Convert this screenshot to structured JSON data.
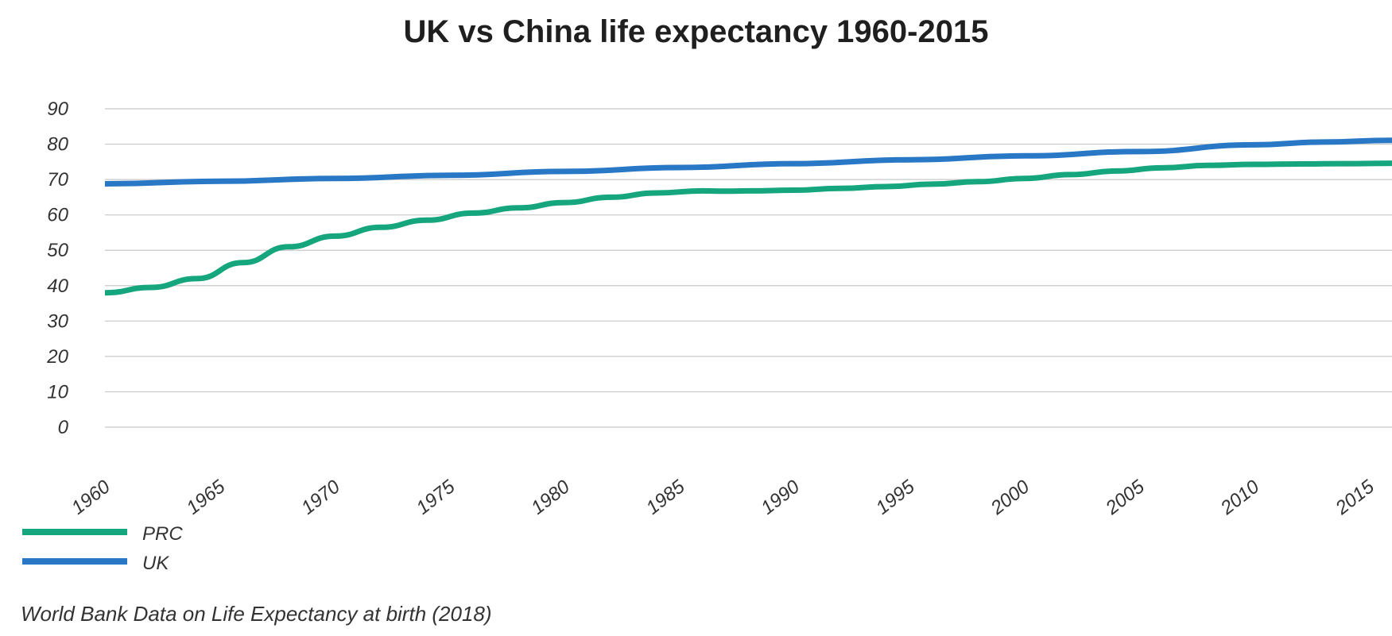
{
  "title": "UK vs China life expectancy 1960-2015",
  "source": "World Bank Data on Life Expectancy at birth (2018)",
  "chart_data": {
    "type": "line",
    "title": "UK vs China life expectancy 1960-2015",
    "xlabel": "",
    "ylabel": "",
    "x_ticks": [
      "1960",
      "1965",
      "1970",
      "1975",
      "1980",
      "1985",
      "1990",
      "1995",
      "2000",
      "2005",
      "2010",
      "2015"
    ],
    "xlim": [
      1960,
      2016
    ],
    "ylim": [
      0,
      90
    ],
    "y_ticks": [
      0,
      10,
      20,
      30,
      40,
      50,
      60,
      70,
      80,
      90
    ],
    "grid": true,
    "legend_position": "bottom-left",
    "series": [
      {
        "name": "PRC",
        "color": "#16a67e",
        "x": [
          1960,
          1962,
          1964,
          1966,
          1968,
          1970,
          1972,
          1974,
          1976,
          1978,
          1980,
          1982,
          1984,
          1986,
          1987,
          1988,
          1990,
          1992,
          1994,
          1996,
          1998,
          2000,
          2002,
          2004,
          2006,
          2008,
          2010,
          2012,
          2014,
          2016
        ],
        "y": [
          38,
          39.5,
          42,
          46.5,
          51,
          54,
          56.5,
          58.5,
          60.5,
          62,
          63.5,
          65,
          66.2,
          66.8,
          66.7,
          66.8,
          67,
          67.5,
          68,
          68.7,
          69.4,
          70.3,
          71.4,
          72.4,
          73.3,
          74,
          74.3,
          74.4,
          74.5,
          74.6
        ]
      },
      {
        "name": "UK",
        "color": "#2878c6",
        "x": [
          1960,
          1965,
          1970,
          1975,
          1980,
          1985,
          1990,
          1995,
          2000,
          2005,
          2010,
          2013,
          2016
        ],
        "y": [
          68.8,
          69.5,
          70.3,
          71.2,
          72.3,
          73.4,
          74.5,
          75.6,
          76.7,
          77.9,
          79.8,
          80.6,
          81.1
        ]
      }
    ]
  }
}
